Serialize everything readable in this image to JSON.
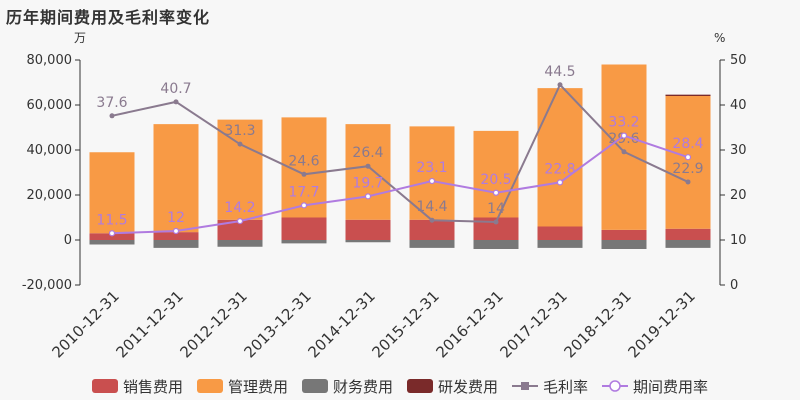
{
  "header": {
    "title": "历年期间费用及毛利率变化"
  },
  "chart_data": {
    "type": "bar+line",
    "title": "历年期间费用及毛利率变化",
    "left_axis_unit": "万",
    "right_axis_unit": "%",
    "categories": [
      "2010-12-31",
      "2011-12-31",
      "2012-12-31",
      "2013-12-31",
      "2014-12-31",
      "2015-12-31",
      "2016-12-31",
      "2017-12-31",
      "2018-12-31",
      "2019-12-31"
    ],
    "y_left": {
      "min": -20000,
      "max": 80000,
      "ticks": [
        -20000,
        0,
        20000,
        40000,
        60000,
        80000
      ],
      "tick_labels": [
        "-20,000",
        "0",
        "20,000",
        "40,000",
        "60,000",
        "80,000"
      ]
    },
    "y_right": {
      "min": 0,
      "max": 50,
      "ticks": [
        0,
        10,
        20,
        30,
        40,
        50
      ],
      "tick_labels": [
        "0",
        "10",
        "20",
        "30",
        "40",
        "50"
      ]
    },
    "bar_series": [
      {
        "name": "销售费用",
        "color": "#c94f4f",
        "values": [
          3000,
          3500,
          9000,
          10000,
          9000,
          9000,
          10000,
          6000,
          4500,
          5000
        ]
      },
      {
        "name": "管理费用",
        "color": "#f89a45",
        "values": [
          36000,
          48000,
          44500,
          44500,
          42500,
          41500,
          38500,
          61500,
          73500,
          59000
        ]
      },
      {
        "name": "财务费用",
        "color": "#777777",
        "values": [
          -2000,
          -3500,
          -3000,
          -1500,
          -1000,
          -3500,
          -4000,
          -3500,
          -4000,
          -3500
        ]
      },
      {
        "name": "研发费用",
        "color": "#7a2a2a",
        "values": [
          0,
          0,
          0,
          0,
          0,
          0,
          0,
          0,
          0,
          600
        ]
      }
    ],
    "line_series": [
      {
        "name": "毛利率",
        "color": "#8a7a8f",
        "values": [
          37.6,
          40.7,
          31.3,
          24.6,
          26.4,
          14.4,
          14.0,
          44.5,
          29.6,
          22.9
        ],
        "labels": [
          "37.6",
          "40.7",
          "31.3",
          "24.6",
          "26.4",
          "14.4",
          "14",
          "44.5",
          "29.6",
          "22.9"
        ]
      },
      {
        "name": "期间费用率",
        "color": "#b07be0",
        "values": [
          11.5,
          12.0,
          14.2,
          17.7,
          19.7,
          23.1,
          20.5,
          22.8,
          33.2,
          28.4
        ],
        "labels": [
          "11.5",
          "12",
          "14.2",
          "17.7",
          "19.7",
          "23.1",
          "20.5",
          "22.8",
          "33.2",
          "28.4"
        ]
      }
    ],
    "legend_position": "bottom",
    "grid": false
  },
  "legend": {
    "items": [
      {
        "label": "销售费用",
        "color": "#c94f4f",
        "kind": "bar"
      },
      {
        "label": "管理费用",
        "color": "#f89a45",
        "kind": "bar"
      },
      {
        "label": "财务费用",
        "color": "#777777",
        "kind": "bar"
      },
      {
        "label": "研发费用",
        "color": "#7a2a2a",
        "kind": "bar"
      },
      {
        "label": "毛利率",
        "color": "#8a7a8f",
        "kind": "line-square"
      },
      {
        "label": "期间费用率",
        "color": "#b07be0",
        "kind": "line-circle"
      }
    ]
  }
}
